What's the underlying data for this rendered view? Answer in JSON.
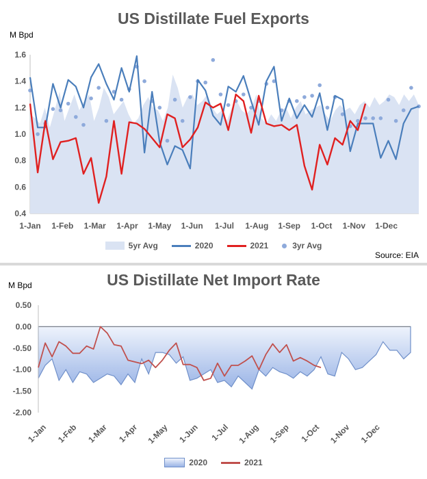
{
  "chart_data": [
    {
      "type": "line",
      "title": "US Distillate Fuel Exports",
      "ylabel": "M Bpd",
      "source": "Source: EIA",
      "ylim": [
        0.4,
        1.6
      ],
      "yticks": [
        "0.4",
        "0.6",
        "0.8",
        "1.0",
        "1.2",
        "1.4",
        "1.6"
      ],
      "xticks": [
        "1-Jan",
        "1-Feb",
        "1-Mar",
        "1-Apr",
        "1-May",
        "1-Jun",
        "1-Jul",
        "1-Aug",
        "1-Sep",
        "1-Oct",
        "1-Nov",
        "1-Dec"
      ],
      "legend": [
        "5yr Avg",
        "2020",
        "2021",
        "3yr Avg"
      ],
      "colors": {
        "avg5": "#dae3f3",
        "y2020": "#4a7ebb",
        "y2021": "#e02020",
        "avg3": "#8eaadb"
      },
      "series": [
        {
          "name": "5yr Avg",
          "kind": "area",
          "values": [
            1.15,
            1.12,
            1.08,
            1.2,
            1.05,
            1.18,
            1.32,
            1.1,
            1.2,
            1.3,
            1.18,
            1.25,
            1.3,
            1.1,
            1.2,
            1.35,
            1.28,
            1.15,
            1.2,
            1.25,
            1.15,
            1.08,
            1.12,
            1.22,
            1.28,
            1.2,
            1.18,
            1.1,
            1.2,
            1.45,
            1.35,
            1.2,
            1.28,
            1.3,
            1.22,
            1.25,
            1.3,
            1.2,
            1.15,
            1.18,
            1.1,
            1.2,
            1.25,
            1.18,
            1.15,
            1.2,
            1.3,
            1.12,
            1.08,
            1.15,
            1.1,
            1.18,
            1.2,
            1.12,
            1.2,
            1.25,
            1.15,
            1.18,
            1.2,
            1.22,
            1.15,
            1.1,
            1.18,
            1.22,
            1.18,
            1.2,
            1.15,
            1.22,
            1.25,
            1.2,
            1.28,
            1.22,
            1.25,
            1.3,
            1.28,
            1.22,
            1.3,
            1.25,
            1.3,
            1.22
          ]
        },
        {
          "name": "2020",
          "values": [
            1.43,
            1.05,
            1.05,
            1.38,
            1.2,
            1.41,
            1.36,
            1.2,
            1.43,
            1.53,
            1.38,
            1.26,
            1.5,
            1.32,
            1.59,
            0.86,
            1.32,
            0.94,
            0.77,
            0.91,
            0.88,
            0.74,
            1.41,
            1.33,
            1.14,
            1.07,
            1.36,
            1.32,
            1.44,
            1.25,
            1.07,
            1.4,
            1.51,
            1.1,
            1.27,
            1.12,
            1.22,
            1.13,
            1.31,
            1.03,
            1.29,
            1.26,
            0.87,
            1.08,
            1.08,
            1.08,
            0.82,
            0.95,
            0.81,
            1.08,
            1.19,
            1.21
          ]
        },
        {
          "name": "2021",
          "values": [
            1.23,
            0.71,
            1.1,
            0.81,
            0.94,
            0.95,
            0.97,
            0.7,
            0.82,
            0.48,
            0.68,
            1.1,
            0.7,
            1.09,
            1.08,
            1.04,
            0.97,
            0.9,
            1.15,
            1.12,
            0.9,
            0.96,
            1.05,
            1.24,
            1.2,
            1.23,
            1.03,
            1.3,
            1.25,
            1.01,
            1.29,
            1.08,
            1.06,
            1.07,
            1.03,
            1.07,
            0.76,
            0.58,
            0.92,
            0.77,
            0.97,
            0.92,
            1.1,
            1.03,
            1.23
          ]
        },
        {
          "name": "3yr Avg",
          "kind": "points",
          "values": [
            1.33,
            1.0,
            1.08,
            1.19,
            1.18,
            1.23,
            1.13,
            1.07,
            1.27,
            1.35,
            1.1,
            1.32,
            1.26,
            1.34,
            1.51,
            1.4,
            1.25,
            1.2,
            0.95,
            1.26,
            1.1,
            1.28,
            1.4,
            1.39,
            1.56,
            1.3,
            1.22,
            1.25,
            1.3,
            1.2,
            1.25,
            1.38,
            1.4,
            1.18,
            1.25,
            1.25,
            1.28,
            1.29,
            1.37,
            1.2,
            1.28,
            1.15,
            1.06,
            1.1,
            1.12,
            1.12,
            1.12,
            1.26,
            1.1,
            1.18,
            1.35,
            1.21
          ]
        }
      ]
    },
    {
      "type": "area",
      "title": "US Distillate Net Import Rate",
      "ylabel": "M Bpd",
      "ylim": [
        -2.0,
        0.5
      ],
      "yticks": [
        "0.50",
        "0.00",
        "-0.50",
        "-1.00",
        "-1.50",
        "-2.00"
      ],
      "xticks": [
        "1-Jan",
        "1-Feb",
        "1-Mar",
        "1-Apr",
        "1-May",
        "1-Jun",
        "1-Jul",
        "1-Aug",
        "1-Sep",
        "1-Oct",
        "1-Nov",
        "1-Dec"
      ],
      "legend": [
        "2020",
        "2021"
      ],
      "colors": {
        "y2020_line": "#6f8fc9",
        "y2020_fill_top": "#eef3fc",
        "y2020_fill_bottom": "#9ab4e6",
        "y2021": "#c0504d",
        "axis": "#7f7f7f"
      },
      "series": [
        {
          "name": "2020",
          "kind": "area",
          "values": [
            -1.2,
            -0.9,
            -0.75,
            -1.25,
            -1.0,
            -1.3,
            -1.05,
            -1.1,
            -1.3,
            -1.2,
            -1.1,
            -1.15,
            -1.35,
            -1.1,
            -1.3,
            -0.75,
            -1.1,
            -0.6,
            -0.6,
            -0.65,
            -0.85,
            -0.7,
            -1.25,
            -1.2,
            -1.1,
            -1.0,
            -1.3,
            -1.25,
            -1.4,
            -1.15,
            -1.3,
            -1.45,
            -1.0,
            -1.15,
            -0.95,
            -1.05,
            -1.1,
            -1.2,
            -1.05,
            -1.15,
            -1.0,
            -0.7,
            -1.1,
            -1.15,
            -0.6,
            -0.75,
            -1.0,
            -0.95,
            -0.8,
            -0.65,
            -0.35,
            -0.55,
            -0.55,
            -0.75,
            -0.6
          ]
        },
        {
          "name": "2021",
          "values": [
            -0.95,
            -0.38,
            -0.7,
            -0.35,
            -0.45,
            -0.62,
            -0.62,
            -0.45,
            -0.52,
            0.0,
            -0.15,
            -0.42,
            -0.45,
            -0.78,
            -0.82,
            -0.86,
            -0.78,
            -0.95,
            -0.78,
            -0.55,
            -0.38,
            -0.88,
            -0.88,
            -0.95,
            -1.25,
            -1.2,
            -0.85,
            -1.15,
            -0.9,
            -0.9,
            -0.8,
            -0.68,
            -1.0,
            -0.65,
            -0.4,
            -0.6,
            -0.42,
            -0.8,
            -0.72,
            -0.8,
            -0.9,
            -0.95
          ]
        }
      ]
    }
  ]
}
